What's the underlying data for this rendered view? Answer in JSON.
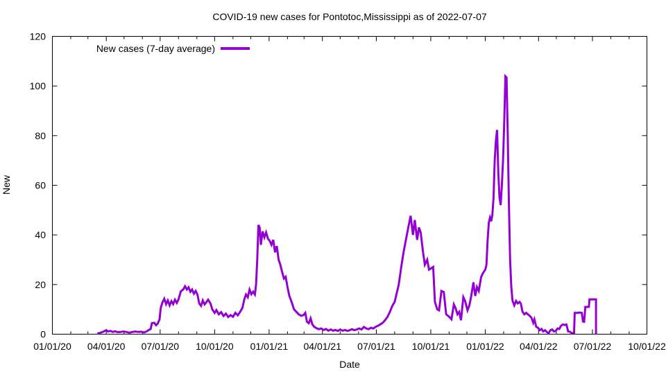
{
  "chart_data": {
    "type": "line",
    "title": "COVID-19 new cases for Pontotoc,Mississippi as of 2022-07-07",
    "xlabel": "Date",
    "ylabel": "New",
    "legend_label": "New cases (7-day average)",
    "ylim": [
      0,
      120
    ],
    "y_ticks": [
      0,
      20,
      40,
      60,
      80,
      100,
      120
    ],
    "xlim": [
      "2020-01-01",
      "2022-10-01"
    ],
    "x_ticks": [
      {
        "date": "2020-01-01",
        "label": "01/01/20"
      },
      {
        "date": "2020-04-01",
        "label": "04/01/20"
      },
      {
        "date": "2020-07-01",
        "label": "07/01/20"
      },
      {
        "date": "2020-10-01",
        "label": "10/01/20"
      },
      {
        "date": "2021-01-01",
        "label": "01/01/21"
      },
      {
        "date": "2021-04-01",
        "label": "04/01/21"
      },
      {
        "date": "2021-07-01",
        "label": "07/01/21"
      },
      {
        "date": "2021-10-01",
        "label": "10/01/21"
      },
      {
        "date": "2022-01-01",
        "label": "01/01/22"
      },
      {
        "date": "2022-04-01",
        "label": "04/01/22"
      },
      {
        "date": "2022-07-01",
        "label": "07/01/22"
      },
      {
        "date": "2022-10-01",
        "label": "10/01/22"
      }
    ],
    "grid": false,
    "legend_position": "top-left-inside",
    "series": [
      {
        "name": "New cases (7-day average)",
        "color": "#9400d3",
        "points": [
          [
            "2020-03-17",
            0.3
          ],
          [
            "2020-03-22",
            0.6
          ],
          [
            "2020-03-27",
            1.0
          ],
          [
            "2020-04-01",
            1.6
          ],
          [
            "2020-04-04",
            1.1
          ],
          [
            "2020-04-08",
            1.3
          ],
          [
            "2020-04-12",
            0.9
          ],
          [
            "2020-04-16",
            1.2
          ],
          [
            "2020-04-20",
            0.8
          ],
          [
            "2020-04-25",
            0.9
          ],
          [
            "2020-04-30",
            1.1
          ],
          [
            "2020-05-05",
            0.9
          ],
          [
            "2020-05-10",
            0.6
          ],
          [
            "2020-05-15",
            0.9
          ],
          [
            "2020-05-20",
            1.1
          ],
          [
            "2020-05-25",
            0.9
          ],
          [
            "2020-05-30",
            1.0
          ],
          [
            "2020-06-04",
            0.7
          ],
          [
            "2020-06-08",
            1.1
          ],
          [
            "2020-06-12",
            1.7
          ],
          [
            "2020-06-15",
            2.1
          ],
          [
            "2020-06-17",
            4.4
          ],
          [
            "2020-06-21",
            4.6
          ],
          [
            "2020-06-24",
            3.6
          ],
          [
            "2020-06-27",
            4.3
          ],
          [
            "2020-06-30",
            6.0
          ],
          [
            "2020-07-02",
            10.6
          ],
          [
            "2020-07-05",
            12.9
          ],
          [
            "2020-07-08",
            14.3
          ],
          [
            "2020-07-11",
            12.1
          ],
          [
            "2020-07-14",
            13.6
          ],
          [
            "2020-07-17",
            11.6
          ],
          [
            "2020-07-20",
            13.3
          ],
          [
            "2020-07-23",
            12.1
          ],
          [
            "2020-07-26",
            13.9
          ],
          [
            "2020-07-29",
            12.6
          ],
          [
            "2020-08-01",
            14.0
          ],
          [
            "2020-08-05",
            17.3
          ],
          [
            "2020-08-09",
            18.0
          ],
          [
            "2020-08-12",
            19.3
          ],
          [
            "2020-08-15",
            18.0
          ],
          [
            "2020-08-18",
            18.9
          ],
          [
            "2020-08-21",
            17.1
          ],
          [
            "2020-08-24",
            18.0
          ],
          [
            "2020-08-27",
            16.3
          ],
          [
            "2020-08-30",
            17.4
          ],
          [
            "2020-09-02",
            15.9
          ],
          [
            "2020-09-05",
            12.4
          ],
          [
            "2020-09-08",
            11.4
          ],
          [
            "2020-09-11",
            13.6
          ],
          [
            "2020-09-14",
            12.0
          ],
          [
            "2020-09-17",
            12.9
          ],
          [
            "2020-09-20",
            13.9
          ],
          [
            "2020-09-24",
            12.4
          ],
          [
            "2020-09-27",
            10.0
          ],
          [
            "2020-10-01",
            8.6
          ],
          [
            "2020-10-04",
            9.7
          ],
          [
            "2020-10-08",
            8.0
          ],
          [
            "2020-10-12",
            8.9
          ],
          [
            "2020-10-16",
            7.3
          ],
          [
            "2020-10-20",
            8.3
          ],
          [
            "2020-10-24",
            6.9
          ],
          [
            "2020-10-28",
            7.7
          ],
          [
            "2020-11-01",
            7.0
          ],
          [
            "2020-11-05",
            8.6
          ],
          [
            "2020-11-09",
            7.6
          ],
          [
            "2020-11-13",
            9.0
          ],
          [
            "2020-11-17",
            10.6
          ],
          [
            "2020-11-20",
            14.0
          ],
          [
            "2020-11-23",
            16.0
          ],
          [
            "2020-11-26",
            14.9
          ],
          [
            "2020-11-29",
            18.0
          ],
          [
            "2020-12-02",
            16.1
          ],
          [
            "2020-12-05",
            17.1
          ],
          [
            "2020-12-08",
            16.0
          ],
          [
            "2020-12-10",
            20.0
          ],
          [
            "2020-12-12",
            30.0
          ],
          [
            "2020-12-14",
            44.0
          ],
          [
            "2020-12-16",
            43.0
          ],
          [
            "2020-12-18",
            36.0
          ],
          [
            "2020-12-21",
            41.4
          ],
          [
            "2020-12-24",
            39.0
          ],
          [
            "2020-12-27",
            41.0
          ],
          [
            "2020-12-30",
            38.5
          ],
          [
            "2021-01-02",
            37.6
          ],
          [
            "2021-01-05",
            36.0
          ],
          [
            "2021-01-08",
            38.0
          ],
          [
            "2021-01-11",
            33.0
          ],
          [
            "2021-01-14",
            35.5
          ],
          [
            "2021-01-17",
            30.0
          ],
          [
            "2021-01-20",
            28.0
          ],
          [
            "2021-01-23",
            25.0
          ],
          [
            "2021-01-26",
            22.4
          ],
          [
            "2021-01-29",
            23.1
          ],
          [
            "2021-02-01",
            19.0
          ],
          [
            "2021-02-04",
            15.6
          ],
          [
            "2021-02-08",
            13.0
          ],
          [
            "2021-02-12",
            10.0
          ],
          [
            "2021-02-16",
            9.0
          ],
          [
            "2021-02-20",
            8.0
          ],
          [
            "2021-02-24",
            7.4
          ],
          [
            "2021-02-28",
            7.7
          ],
          [
            "2021-03-03",
            8.6
          ],
          [
            "2021-03-06",
            5.0
          ],
          [
            "2021-03-09",
            4.4
          ],
          [
            "2021-03-12",
            6.4
          ],
          [
            "2021-03-15",
            4.0
          ],
          [
            "2021-03-18",
            3.0
          ],
          [
            "2021-03-22",
            2.4
          ],
          [
            "2021-03-26",
            2.0
          ],
          [
            "2021-03-30",
            2.3
          ],
          [
            "2021-04-03",
            1.7
          ],
          [
            "2021-04-07",
            2.1
          ],
          [
            "2021-04-11",
            1.4
          ],
          [
            "2021-04-15",
            1.9
          ],
          [
            "2021-04-19",
            1.4
          ],
          [
            "2021-04-23",
            1.7
          ],
          [
            "2021-04-27",
            1.3
          ],
          [
            "2021-05-01",
            1.9
          ],
          [
            "2021-05-05",
            1.4
          ],
          [
            "2021-05-09",
            1.7
          ],
          [
            "2021-05-13",
            1.3
          ],
          [
            "2021-05-17",
            1.6
          ],
          [
            "2021-05-21",
            2.0
          ],
          [
            "2021-05-25",
            1.6
          ],
          [
            "2021-05-29",
            1.9
          ],
          [
            "2021-06-02",
            2.3
          ],
          [
            "2021-06-06",
            1.9
          ],
          [
            "2021-06-10",
            2.9
          ],
          [
            "2021-06-14",
            2.3
          ],
          [
            "2021-06-18",
            2.0
          ],
          [
            "2021-06-22",
            2.6
          ],
          [
            "2021-06-26",
            2.3
          ],
          [
            "2021-06-30",
            3.0
          ],
          [
            "2021-07-04",
            3.4
          ],
          [
            "2021-07-08",
            4.0
          ],
          [
            "2021-07-12",
            4.6
          ],
          [
            "2021-07-16",
            5.7
          ],
          [
            "2021-07-20",
            7.0
          ],
          [
            "2021-07-24",
            9.0
          ],
          [
            "2021-07-28",
            11.4
          ],
          [
            "2021-08-01",
            13.0
          ],
          [
            "2021-08-04",
            16.0
          ],
          [
            "2021-08-08",
            20.0
          ],
          [
            "2021-08-12",
            27.0
          ],
          [
            "2021-08-16",
            33.0
          ],
          [
            "2021-08-20",
            38.0
          ],
          [
            "2021-08-24",
            43.0
          ],
          [
            "2021-08-28",
            47.7
          ],
          [
            "2021-09-01",
            40.0
          ],
          [
            "2021-09-04",
            46.0
          ],
          [
            "2021-09-08",
            38.0
          ],
          [
            "2021-09-11",
            43.0
          ],
          [
            "2021-09-14",
            41.0
          ],
          [
            "2021-09-18",
            33.0
          ],
          [
            "2021-09-21",
            28.0
          ],
          [
            "2021-09-25",
            30.0
          ],
          [
            "2021-09-28",
            26.0
          ],
          [
            "2021-10-02",
            26.6
          ],
          [
            "2021-10-05",
            27.1
          ],
          [
            "2021-10-08",
            13.0
          ],
          [
            "2021-10-12",
            10.0
          ],
          [
            "2021-10-15",
            9.6
          ],
          [
            "2021-10-19",
            17.4
          ],
          [
            "2021-10-23",
            17.0
          ],
          [
            "2021-10-27",
            8.0
          ],
          [
            "2021-11-01",
            7.0
          ],
          [
            "2021-11-05",
            6.0
          ],
          [
            "2021-11-09",
            12.0
          ],
          [
            "2021-11-12",
            10.4
          ],
          [
            "2021-11-15",
            8.0
          ],
          [
            "2021-11-18",
            9.0
          ],
          [
            "2021-11-21",
            5.6
          ],
          [
            "2021-11-25",
            14.9
          ],
          [
            "2021-11-28",
            13.4
          ],
          [
            "2021-12-02",
            9.6
          ],
          [
            "2021-12-05",
            11.4
          ],
          [
            "2021-12-08",
            15.0
          ],
          [
            "2021-12-12",
            20.9
          ],
          [
            "2021-12-15",
            15.4
          ],
          [
            "2021-12-18",
            19.0
          ],
          [
            "2021-12-21",
            17.4
          ],
          [
            "2021-12-25",
            23.0
          ],
          [
            "2021-12-28",
            24.6
          ],
          [
            "2022-01-01",
            26.0
          ],
          [
            "2022-01-03",
            28.0
          ],
          [
            "2022-01-05",
            38.0
          ],
          [
            "2022-01-07",
            45.0
          ],
          [
            "2022-01-09",
            47.0
          ],
          [
            "2022-01-11",
            45.5
          ],
          [
            "2022-01-13",
            48.0
          ],
          [
            "2022-01-15",
            55.0
          ],
          [
            "2022-01-17",
            70.0
          ],
          [
            "2022-01-19",
            78.0
          ],
          [
            "2022-01-21",
            82.3
          ],
          [
            "2022-01-23",
            65.0
          ],
          [
            "2022-01-25",
            55.0
          ],
          [
            "2022-01-27",
            52.0
          ],
          [
            "2022-01-29",
            60.0
          ],
          [
            "2022-01-31",
            70.0
          ],
          [
            "2022-02-02",
            85.0
          ],
          [
            "2022-02-04",
            103.9
          ],
          [
            "2022-02-06",
            103.4
          ],
          [
            "2022-02-08",
            80.0
          ],
          [
            "2022-02-10",
            52.0
          ],
          [
            "2022-02-12",
            30.0
          ],
          [
            "2022-02-14",
            19.0
          ],
          [
            "2022-02-16",
            13.6
          ],
          [
            "2022-02-19",
            11.6
          ],
          [
            "2022-02-22",
            13.4
          ],
          [
            "2022-02-25",
            12.4
          ],
          [
            "2022-02-28",
            13.0
          ],
          [
            "2022-03-02",
            12.4
          ],
          [
            "2022-03-05",
            9.0
          ],
          [
            "2022-03-08",
            8.0
          ],
          [
            "2022-03-11",
            8.6
          ],
          [
            "2022-03-14",
            8.0
          ],
          [
            "2022-03-17",
            7.4
          ],
          [
            "2022-03-20",
            6.6
          ],
          [
            "2022-03-23",
            4.6
          ],
          [
            "2022-03-25",
            6.0
          ],
          [
            "2022-03-28",
            3.0
          ],
          [
            "2022-03-31",
            2.6
          ],
          [
            "2022-04-03",
            1.6
          ],
          [
            "2022-04-06",
            2.1
          ],
          [
            "2022-04-09",
            1.1
          ],
          [
            "2022-04-12",
            1.6
          ],
          [
            "2022-04-15",
            0.9
          ],
          [
            "2022-04-18",
            0.3
          ],
          [
            "2022-04-21",
            1.6
          ],
          [
            "2022-04-24",
            1.9
          ],
          [
            "2022-04-27",
            1.1
          ],
          [
            "2022-04-30",
            1.3
          ],
          [
            "2022-05-03",
            2.3
          ],
          [
            "2022-05-06",
            2.1
          ],
          [
            "2022-05-09",
            3.4
          ],
          [
            "2022-05-12",
            3.9
          ],
          [
            "2022-05-15",
            3.7
          ],
          [
            "2022-05-18",
            3.9
          ],
          [
            "2022-05-21",
            1.1
          ],
          [
            "2022-05-24",
            1.0
          ],
          [
            "2022-05-27",
            0.4
          ],
          [
            "2022-05-31",
            0.6
          ],
          [
            "2022-06-01",
            8.6
          ],
          [
            "2022-06-05",
            8.6
          ],
          [
            "2022-06-09",
            8.7
          ],
          [
            "2022-06-13",
            8.6
          ],
          [
            "2022-06-15",
            5.1
          ],
          [
            "2022-06-17",
            5.0
          ],
          [
            "2022-06-19",
            11.0
          ],
          [
            "2022-06-22",
            11.0
          ],
          [
            "2022-06-25",
            11.0
          ],
          [
            "2022-06-26",
            14.0
          ],
          [
            "2022-06-30",
            14.0
          ],
          [
            "2022-07-04",
            14.0
          ],
          [
            "2022-07-07",
            14.0
          ],
          [
            "2022-07-07",
            0.0
          ]
        ]
      }
    ]
  }
}
